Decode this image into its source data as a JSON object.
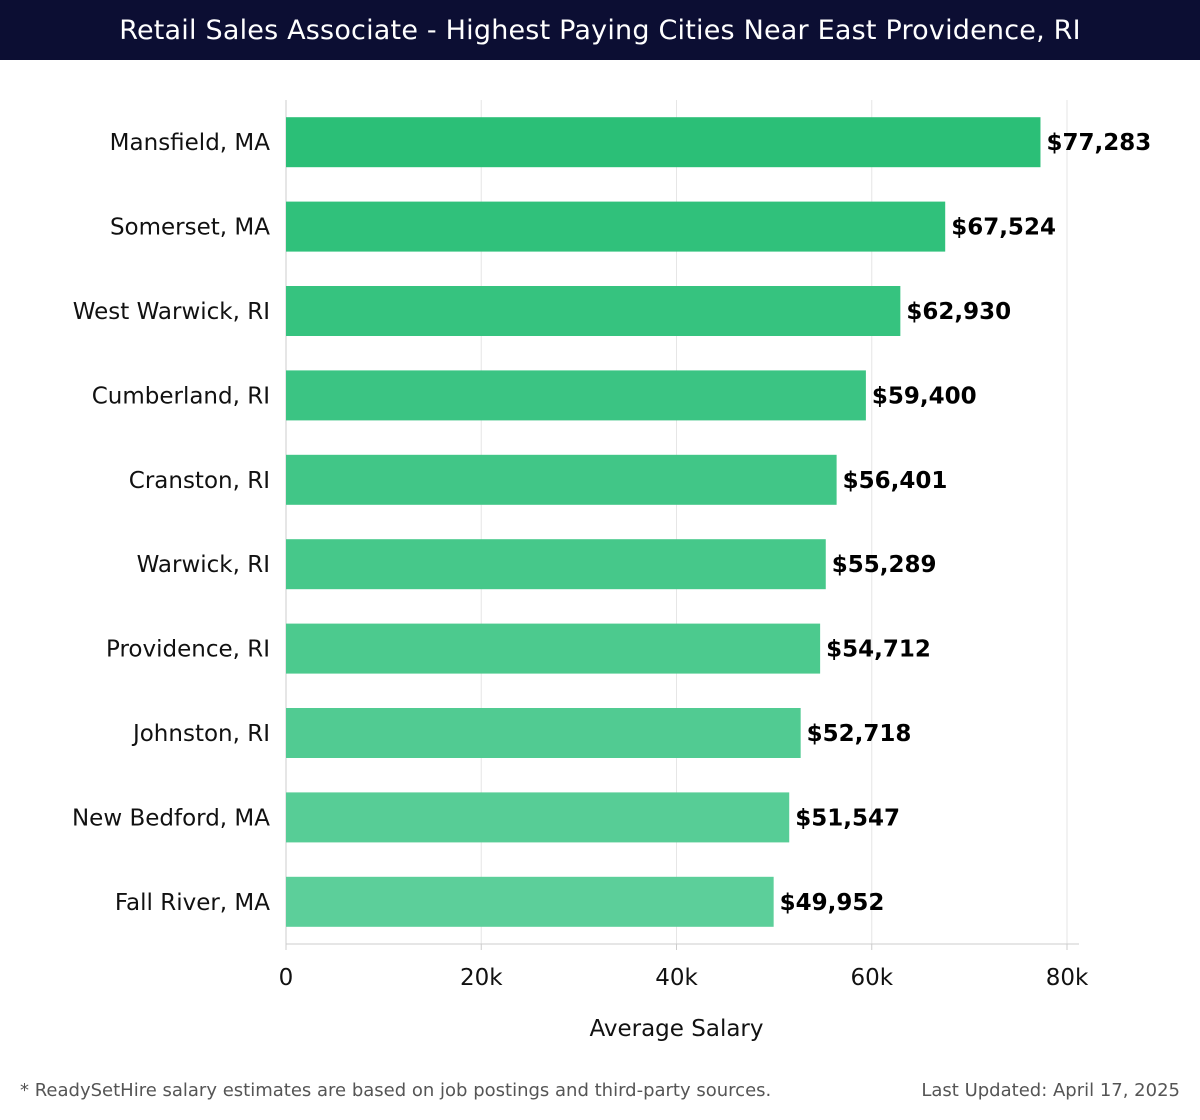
{
  "header": {
    "title": "Retail Sales Associate - Highest Paying Cities Near East Providence, RI"
  },
  "footer": {
    "note": "* ReadySetHire salary estimates are based on job postings and third-party sources.",
    "updated": "Last Updated: April 17, 2025"
  },
  "colors": {
    "header_bg": "#0c0e33",
    "bar_top": "#2bbf77",
    "bar_bottom": "#5ccf9a"
  },
  "chart_data": {
    "type": "bar",
    "orientation": "horizontal",
    "categories": [
      "Mansfield, MA",
      "Somerset, MA",
      "West Warwick, RI",
      "Cumberland, RI",
      "Cranston, RI",
      "Warwick, RI",
      "Providence, RI",
      "Johnston, RI",
      "New Bedford, MA",
      "Fall River, MA"
    ],
    "values": [
      77283,
      67524,
      62930,
      59400,
      56401,
      55289,
      54712,
      52718,
      51547,
      49952
    ],
    "value_labels": [
      "$77,283",
      "$67,524",
      "$62,930",
      "$59,400",
      "$56,401",
      "$55,289",
      "$54,712",
      "$52,718",
      "$51,547",
      "$49,952"
    ],
    "xlabel": "Average Salary",
    "ylabel": "",
    "xlim": [
      0,
      80000
    ],
    "x_ticks": [
      0,
      20000,
      40000,
      60000,
      80000
    ],
    "x_tick_labels": [
      "0",
      "20k",
      "40k",
      "60k",
      "80k"
    ],
    "grid": true,
    "legend": "none"
  }
}
